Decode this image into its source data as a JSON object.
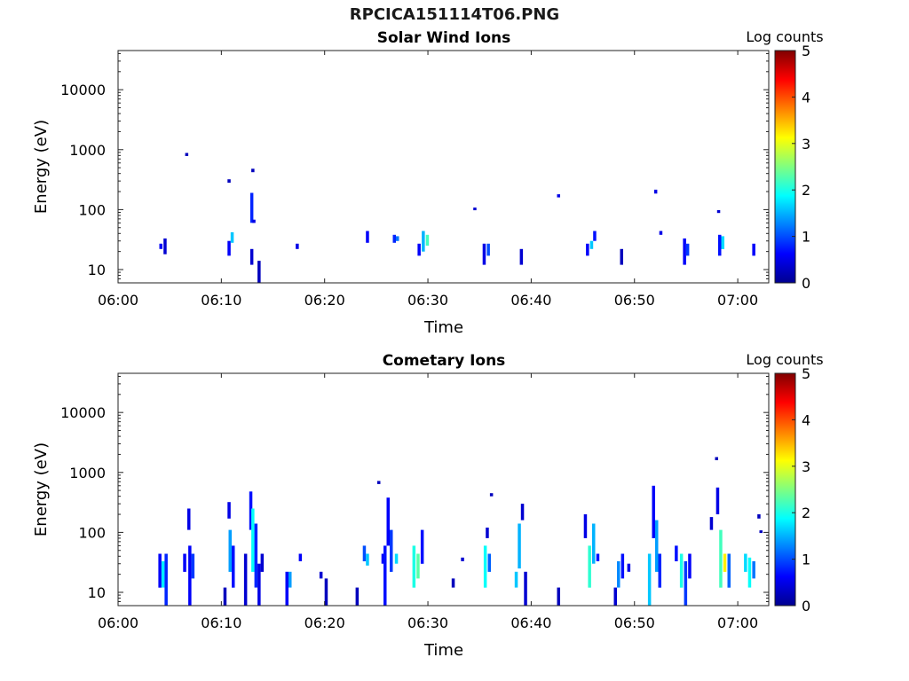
{
  "figure": {
    "title": "RPCICA151114T06.PNG"
  },
  "chart_data": [
    {
      "type": "heatmap",
      "title": "Solar Wind Ions",
      "xlabel": "Time",
      "ylabel": "Energy (eV)",
      "y_scale": "log",
      "xlim": [
        "06:00",
        "07:03"
      ],
      "ylim": [
        6,
        45000
      ],
      "x_ticks": [
        "06:00",
        "06:10",
        "06:20",
        "06:30",
        "06:40",
        "06:50",
        "07:00"
      ],
      "y_ticks": [
        "10",
        "100",
        "1000",
        "10000"
      ],
      "colorbar": {
        "label": "Log counts",
        "range": [
          0,
          5
        ],
        "ticks": [
          "0",
          "1",
          "2",
          "3",
          "4",
          "5"
        ],
        "colormap": "jet"
      },
      "cells": [
        {
          "t": 4.0,
          "e0": 22,
          "e1": 27,
          "v": 0.6
        },
        {
          "t": 4.4,
          "e0": 18,
          "e1": 33,
          "v": 0.4
        },
        {
          "t": 6.5,
          "e0": 780,
          "e1": 880,
          "v": 0.3
        },
        {
          "t": 10.6,
          "e0": 280,
          "e1": 320,
          "v": 0.3
        },
        {
          "t": 10.6,
          "e0": 17,
          "e1": 30,
          "v": 0.6
        },
        {
          "t": 10.9,
          "e0": 28,
          "e1": 42,
          "v": 1.6
        },
        {
          "t": 12.9,
          "e0": 420,
          "e1": 480,
          "v": 0.3
        },
        {
          "t": 12.8,
          "e0": 60,
          "e1": 190,
          "v": 0.8
        },
        {
          "t": 13.0,
          "e0": 60,
          "e1": 68,
          "v": 0.5
        },
        {
          "t": 12.8,
          "e0": 12,
          "e1": 22,
          "v": 0.4
        },
        {
          "t": 13.5,
          "e0": 6,
          "e1": 14,
          "v": 0.3
        },
        {
          "t": 17.2,
          "e0": 22,
          "e1": 27,
          "v": 0.5
        },
        {
          "t": 24.0,
          "e0": 28,
          "e1": 44,
          "v": 0.6
        },
        {
          "t": 26.6,
          "e0": 28,
          "e1": 38,
          "v": 0.8
        },
        {
          "t": 26.9,
          "e0": 30,
          "e1": 36,
          "v": 1.2
        },
        {
          "t": 29.0,
          "e0": 17,
          "e1": 27,
          "v": 0.6
        },
        {
          "t": 29.4,
          "e0": 20,
          "e1": 44,
          "v": 1.5
        },
        {
          "t": 29.8,
          "e0": 25,
          "e1": 38,
          "v": 2.2
        },
        {
          "t": 34.4,
          "e0": 98,
          "e1": 108,
          "v": 0.4
        },
        {
          "t": 35.3,
          "e0": 12,
          "e1": 27,
          "v": 0.5
        },
        {
          "t": 35.7,
          "e0": 17,
          "e1": 27,
          "v": 1.0
        },
        {
          "t": 38.9,
          "e0": 12,
          "e1": 22,
          "v": 0.4
        },
        {
          "t": 42.5,
          "e0": 160,
          "e1": 180,
          "v": 0.5
        },
        {
          "t": 45.3,
          "e0": 17,
          "e1": 27,
          "v": 0.6
        },
        {
          "t": 45.7,
          "e0": 22,
          "e1": 30,
          "v": 1.6
        },
        {
          "t": 46.0,
          "e0": 30,
          "e1": 44,
          "v": 0.7
        },
        {
          "t": 48.6,
          "e0": 12,
          "e1": 22,
          "v": 0.3
        },
        {
          "t": 51.9,
          "e0": 185,
          "e1": 215,
          "v": 0.5
        },
        {
          "t": 52.4,
          "e0": 38,
          "e1": 44,
          "v": 0.5
        },
        {
          "t": 54.7,
          "e0": 12,
          "e1": 33,
          "v": 0.6
        },
        {
          "t": 55.0,
          "e0": 17,
          "e1": 27,
          "v": 0.9
        },
        {
          "t": 58.0,
          "e0": 88,
          "e1": 98,
          "v": 0.4
        },
        {
          "t": 58.1,
          "e0": 17,
          "e1": 38,
          "v": 0.7
        },
        {
          "t": 58.4,
          "e0": 22,
          "e1": 36,
          "v": 1.7
        },
        {
          "t": 61.4,
          "e0": 17,
          "e1": 27,
          "v": 0.6
        }
      ]
    },
    {
      "type": "heatmap",
      "title": "Cometary Ions",
      "xlabel": "Time",
      "ylabel": "Energy (eV)",
      "y_scale": "log",
      "xlim": [
        "06:00",
        "07:03"
      ],
      "ylim": [
        6,
        45000
      ],
      "x_ticks": [
        "06:00",
        "06:10",
        "06:20",
        "06:30",
        "06:40",
        "06:50",
        "07:00"
      ],
      "y_ticks": [
        "10",
        "100",
        "1000",
        "10000"
      ],
      "colorbar": {
        "label": "Log counts",
        "range": [
          0,
          5
        ],
        "ticks": [
          "0",
          "1",
          "2",
          "3",
          "4",
          "5"
        ],
        "colormap": "jet"
      },
      "cells": [
        {
          "t": 3.9,
          "e0": 12,
          "e1": 44,
          "v": 0.6
        },
        {
          "t": 4.2,
          "e0": 12,
          "e1": 33,
          "v": 1.8
        },
        {
          "t": 4.5,
          "e0": 6,
          "e1": 44,
          "v": 0.8
        },
        {
          "t": 6.3,
          "e0": 22,
          "e1": 44,
          "v": 0.6
        },
        {
          "t": 6.7,
          "e0": 110,
          "e1": 250,
          "v": 0.5
        },
        {
          "t": 6.8,
          "e0": 6,
          "e1": 60,
          "v": 0.6
        },
        {
          "t": 7.1,
          "e0": 17,
          "e1": 44,
          "v": 0.9
        },
        {
          "t": 10.2,
          "e0": 6,
          "e1": 12,
          "v": 0.3
        },
        {
          "t": 10.6,
          "e0": 170,
          "e1": 320,
          "v": 0.5
        },
        {
          "t": 10.7,
          "e0": 22,
          "e1": 110,
          "v": 1.4
        },
        {
          "t": 11.0,
          "e0": 12,
          "e1": 60,
          "v": 0.7
        },
        {
          "t": 12.2,
          "e0": 6,
          "e1": 44,
          "v": 0.4
        },
        {
          "t": 12.7,
          "e0": 110,
          "e1": 480,
          "v": 0.7
        },
        {
          "t": 12.9,
          "e0": 22,
          "e1": 250,
          "v": 1.9
        },
        {
          "t": 13.2,
          "e0": 12,
          "e1": 140,
          "v": 0.8
        },
        {
          "t": 13.5,
          "e0": 6,
          "e1": 30,
          "v": 0.5
        },
        {
          "t": 13.8,
          "e0": 22,
          "e1": 44,
          "v": 0.4
        },
        {
          "t": 16.2,
          "e0": 6,
          "e1": 22,
          "v": 0.6
        },
        {
          "t": 16.5,
          "e0": 12,
          "e1": 22,
          "v": 1.4
        },
        {
          "t": 17.5,
          "e0": 33,
          "e1": 44,
          "v": 0.6
        },
        {
          "t": 19.5,
          "e0": 17,
          "e1": 22,
          "v": 0.4
        },
        {
          "t": 20.0,
          "e0": 6,
          "e1": 17,
          "v": 0.3
        },
        {
          "t": 23.0,
          "e0": 6,
          "e1": 12,
          "v": 0.3
        },
        {
          "t": 23.7,
          "e0": 33,
          "e1": 60,
          "v": 1.0
        },
        {
          "t": 24.0,
          "e0": 28,
          "e1": 44,
          "v": 1.6
        },
        {
          "t": 25.1,
          "e0": 640,
          "e1": 720,
          "v": 0.3
        },
        {
          "t": 25.5,
          "e0": 30,
          "e1": 44,
          "v": 0.6
        },
        {
          "t": 25.7,
          "e0": 6,
          "e1": 60,
          "v": 0.7
        },
        {
          "t": 26.0,
          "e0": 60,
          "e1": 380,
          "v": 0.6
        },
        {
          "t": 26.3,
          "e0": 22,
          "e1": 110,
          "v": 0.9
        },
        {
          "t": 26.8,
          "e0": 30,
          "e1": 44,
          "v": 1.7
        },
        {
          "t": 28.5,
          "e0": 12,
          "e1": 60,
          "v": 2.0
        },
        {
          "t": 28.9,
          "e0": 17,
          "e1": 44,
          "v": 2.3
        },
        {
          "t": 29.3,
          "e0": 30,
          "e1": 110,
          "v": 0.7
        },
        {
          "t": 32.3,
          "e0": 12,
          "e1": 17,
          "v": 0.3
        },
        {
          "t": 33.2,
          "e0": 33,
          "e1": 38,
          "v": 0.4
        },
        {
          "t": 35.4,
          "e0": 12,
          "e1": 60,
          "v": 1.9
        },
        {
          "t": 35.8,
          "e0": 22,
          "e1": 44,
          "v": 1.1
        },
        {
          "t": 35.6,
          "e0": 80,
          "e1": 120,
          "v": 0.4
        },
        {
          "t": 36.0,
          "e0": 400,
          "e1": 450,
          "v": 0.3
        },
        {
          "t": 38.4,
          "e0": 12,
          "e1": 22,
          "v": 1.6
        },
        {
          "t": 38.7,
          "e0": 25,
          "e1": 140,
          "v": 1.5
        },
        {
          "t": 39.0,
          "e0": 160,
          "e1": 300,
          "v": 0.4
        },
        {
          "t": 39.3,
          "e0": 6,
          "e1": 22,
          "v": 0.4
        },
        {
          "t": 42.5,
          "e0": 6,
          "e1": 12,
          "v": 0.3
        },
        {
          "t": 45.1,
          "e0": 80,
          "e1": 200,
          "v": 0.5
        },
        {
          "t": 45.5,
          "e0": 12,
          "e1": 60,
          "v": 2.1
        },
        {
          "t": 45.9,
          "e0": 30,
          "e1": 140,
          "v": 1.5
        },
        {
          "t": 46.3,
          "e0": 33,
          "e1": 44,
          "v": 0.7
        },
        {
          "t": 48.0,
          "e0": 6,
          "e1": 12,
          "v": 0.4
        },
        {
          "t": 48.3,
          "e0": 12,
          "e1": 33,
          "v": 1.3
        },
        {
          "t": 48.7,
          "e0": 17,
          "e1": 44,
          "v": 0.7
        },
        {
          "t": 49.3,
          "e0": 22,
          "e1": 30,
          "v": 0.5
        },
        {
          "t": 51.3,
          "e0": 6,
          "e1": 44,
          "v": 1.6
        },
        {
          "t": 51.7,
          "e0": 80,
          "e1": 600,
          "v": 0.6
        },
        {
          "t": 52.0,
          "e0": 22,
          "e1": 160,
          "v": 1.4
        },
        {
          "t": 52.3,
          "e0": 12,
          "e1": 44,
          "v": 0.8
        },
        {
          "t": 53.9,
          "e0": 33,
          "e1": 60,
          "v": 0.7
        },
        {
          "t": 54.4,
          "e0": 12,
          "e1": 44,
          "v": 2.0
        },
        {
          "t": 54.8,
          "e0": 6,
          "e1": 33,
          "v": 0.9
        },
        {
          "t": 55.2,
          "e0": 17,
          "e1": 44,
          "v": 0.6
        },
        {
          "t": 57.3,
          "e0": 110,
          "e1": 180,
          "v": 0.4
        },
        {
          "t": 57.8,
          "e0": 1600,
          "e1": 1800,
          "v": 0.3
        },
        {
          "t": 57.9,
          "e0": 200,
          "e1": 560,
          "v": 0.5
        },
        {
          "t": 58.2,
          "e0": 12,
          "e1": 110,
          "v": 2.2
        },
        {
          "t": 58.6,
          "e0": 22,
          "e1": 44,
          "v": 3.2
        },
        {
          "t": 59.0,
          "e0": 12,
          "e1": 44,
          "v": 1.1
        },
        {
          "t": 60.6,
          "e0": 22,
          "e1": 44,
          "v": 1.7
        },
        {
          "t": 61.0,
          "e0": 12,
          "e1": 38,
          "v": 1.9
        },
        {
          "t": 61.4,
          "e0": 17,
          "e1": 33,
          "v": 1.2
        },
        {
          "t": 61.9,
          "e0": 170,
          "e1": 200,
          "v": 0.3
        },
        {
          "t": 62.1,
          "e0": 98,
          "e1": 108,
          "v": 0.3
        }
      ]
    }
  ]
}
